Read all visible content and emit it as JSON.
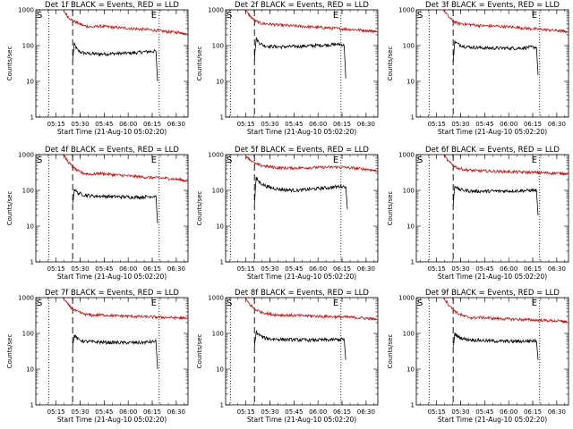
{
  "colors": {
    "events": "#000000",
    "lld": "#dd0000",
    "axis": "#000000",
    "background": "#ffffff"
  },
  "chart_data": [
    {
      "type": "line",
      "title": "Det 1f BLACK = Events, RED = LLD",
      "xlabel": "Start Time (21-Aug-10 05:02:20)",
      "ylabel": "Counts/sec",
      "yscale": "log",
      "ylim": [
        1,
        1000
      ],
      "ytick_labels": [
        "1",
        "10",
        "100",
        "1000"
      ],
      "x_unit": "minutes after 05:02:20",
      "xlim": [
        0,
        95
      ],
      "xtick_labels": [
        "05:15",
        "05:30",
        "05:45",
        "06:00",
        "06:15",
        "06:30"
      ],
      "start_marker": "S",
      "end_marker": "E",
      "dotted_lines": [
        8,
        77
      ],
      "dashed_line": 23,
      "series": [
        {
          "name": "Events",
          "x": [
            23,
            24,
            26,
            28,
            32,
            40,
            50,
            60,
            70,
            75,
            76
          ],
          "y": [
            40,
            110,
            75,
            65,
            60,
            58,
            60,
            62,
            68,
            70,
            10
          ]
        },
        {
          "name": "LLD",
          "x": [
            17,
            20,
            23,
            26,
            30,
            35,
            40,
            50,
            60,
            70,
            80,
            90,
            95
          ],
          "y": [
            1000,
            650,
            500,
            430,
            360,
            330,
            350,
            320,
            300,
            280,
            250,
            230,
            210
          ]
        }
      ]
    },
    {
      "type": "line",
      "title": "Det 2f BLACK = Events, RED = LLD",
      "xlabel": "Start Time (21-Aug-10 05:02:20)",
      "ylabel": "Counts/sec",
      "yscale": "log",
      "ylim": [
        1,
        1000
      ],
      "ytick_labels": [
        "1",
        "10",
        "100",
        "1000"
      ],
      "x_unit": "minutes after 05:02:20",
      "xlim": [
        0,
        95
      ],
      "xtick_labels": [
        "05:15",
        "05:30",
        "05:45",
        "06:00",
        "06:15",
        "06:30"
      ],
      "start_marker": "S",
      "end_marker": "E",
      "dotted_lines": [
        3,
        72
      ],
      "dashed_line": 18,
      "series": [
        {
          "name": "Events",
          "x": [
            18,
            19,
            21,
            24,
            28,
            35,
            45,
            55,
            65,
            72,
            74,
            75
          ],
          "y": [
            40,
            160,
            120,
            100,
            95,
            92,
            95,
            100,
            105,
            110,
            100,
            12
          ]
        },
        {
          "name": "LLD",
          "x": [
            12,
            15,
            18,
            22,
            27,
            32,
            40,
            50,
            60,
            70,
            80,
            90,
            95
          ],
          "y": [
            1000,
            700,
            500,
            420,
            400,
            380,
            360,
            340,
            320,
            300,
            280,
            260,
            240
          ]
        }
      ]
    },
    {
      "type": "line",
      "title": "Det 3f BLACK = Events, RED = LLD",
      "xlabel": "Start Time (21-Aug-10 05:02:20)",
      "ylabel": "Counts/sec",
      "yscale": "log",
      "ylim": [
        1,
        1000
      ],
      "ytick_labels": [
        "1",
        "10",
        "100",
        "1000"
      ],
      "x_unit": "minutes after 05:02:20",
      "xlim": [
        0,
        95
      ],
      "xtick_labels": [
        "05:15",
        "05:30",
        "05:45",
        "06:00",
        "06:15",
        "06:30"
      ],
      "start_marker": "S",
      "end_marker": "E",
      "dotted_lines": [
        8,
        77
      ],
      "dashed_line": 23,
      "series": [
        {
          "name": "Events",
          "x": [
            23,
            24,
            26,
            30,
            35,
            45,
            55,
            65,
            72,
            75,
            76
          ],
          "y": [
            40,
            130,
            110,
            95,
            90,
            85,
            85,
            85,
            90,
            90,
            15
          ]
        },
        {
          "name": "LLD",
          "x": [
            17,
            20,
            23,
            26,
            30,
            35,
            40,
            50,
            60,
            70,
            80,
            90,
            95
          ],
          "y": [
            1000,
            650,
            480,
            420,
            400,
            380,
            360,
            350,
            330,
            300,
            280,
            260,
            240
          ]
        }
      ]
    },
    {
      "type": "line",
      "title": "Det 4f BLACK = Events, RED = LLD",
      "xlabel": "Start Time (21-Aug-10 05:02:20)",
      "ylabel": "Counts/sec",
      "yscale": "log",
      "ylim": [
        1,
        1000
      ],
      "ytick_labels": [
        "1",
        "10",
        "100",
        "1000"
      ],
      "x_unit": "minutes after 05:02:20",
      "xlim": [
        0,
        95
      ],
      "xtick_labels": [
        "05:15",
        "05:30",
        "05:45",
        "06:00",
        "06:15",
        "06:30"
      ],
      "start_marker": "S",
      "end_marker": "E",
      "dotted_lines": [
        8,
        77
      ],
      "dashed_line": 23,
      "series": [
        {
          "name": "Events",
          "x": [
            23,
            24,
            26,
            30,
            35,
            45,
            55,
            65,
            72,
            75,
            76
          ],
          "y": [
            40,
            110,
            85,
            75,
            70,
            68,
            66,
            65,
            68,
            70,
            12
          ]
        },
        {
          "name": "LLD",
          "x": [
            17,
            20,
            23,
            26,
            30,
            35,
            40,
            50,
            60,
            70,
            80,
            90,
            95
          ],
          "y": [
            1000,
            650,
            450,
            350,
            300,
            280,
            300,
            270,
            250,
            230,
            220,
            200,
            180
          ]
        }
      ]
    },
    {
      "type": "line",
      "title": "Det 5f BLACK = Events, RED = LLD",
      "xlabel": "Start Time (21-Aug-10 05:02:20)",
      "ylabel": "Counts/sec",
      "yscale": "log",
      "ylim": [
        1,
        1000
      ],
      "ytick_labels": [
        "1",
        "10",
        "100",
        "1000"
      ],
      "x_unit": "minutes after 05:02:20",
      "xlim": [
        0,
        95
      ],
      "xtick_labels": [
        "05:15",
        "05:30",
        "05:45",
        "06:00",
        "06:15",
        "06:30"
      ],
      "start_marker": "S",
      "end_marker": "E",
      "dotted_lines": [
        3,
        72
      ],
      "dashed_line": 18,
      "series": [
        {
          "name": "Events",
          "x": [
            18,
            19,
            21,
            24,
            28,
            35,
            45,
            55,
            65,
            72,
            75,
            76
          ],
          "y": [
            40,
            220,
            170,
            140,
            120,
            105,
            100,
            110,
            120,
            130,
            130,
            30
          ]
        },
        {
          "name": "LLD",
          "x": [
            12,
            15,
            18,
            22,
            27,
            32,
            40,
            50,
            60,
            70,
            80,
            90,
            95
          ],
          "y": [
            1000,
            750,
            560,
            500,
            460,
            430,
            420,
            430,
            440,
            450,
            420,
            380,
            340
          ]
        }
      ]
    },
    {
      "type": "line",
      "title": "Det 6f BLACK = Events, RED = LLD",
      "xlabel": "Start Time (21-Aug-10 05:02:20)",
      "ylabel": "Counts/sec",
      "yscale": "log",
      "ylim": [
        1,
        1000
      ],
      "ytick_labels": [
        "1",
        "10",
        "100",
        "1000"
      ],
      "x_unit": "minutes after 05:02:20",
      "xlim": [
        0,
        95
      ],
      "xtick_labels": [
        "05:15",
        "05:30",
        "05:45",
        "06:00",
        "06:15",
        "06:30"
      ],
      "start_marker": "S",
      "end_marker": "E",
      "dotted_lines": [
        8,
        77
      ],
      "dashed_line": 23,
      "series": [
        {
          "name": "Events",
          "x": [
            23,
            24,
            26,
            30,
            35,
            45,
            55,
            65,
            72,
            75,
            76
          ],
          "y": [
            40,
            140,
            110,
            100,
            95,
            95,
            96,
            98,
            100,
            100,
            20
          ]
        },
        {
          "name": "LLD",
          "x": [
            17,
            20,
            23,
            26,
            30,
            35,
            40,
            50,
            60,
            70,
            80,
            90,
            95
          ],
          "y": [
            1000,
            650,
            500,
            420,
            380,
            360,
            350,
            340,
            330,
            320,
            310,
            300,
            290
          ]
        }
      ]
    },
    {
      "type": "line",
      "title": "Det 7f BLACK = Events, RED = LLD",
      "xlabel": "Start Time (21-Aug-10 05:02:20)",
      "ylabel": "Counts/sec",
      "yscale": "log",
      "ylim": [
        1,
        1000
      ],
      "ytick_labels": [
        "1",
        "10",
        "100",
        "1000"
      ],
      "x_unit": "minutes after 05:02:20",
      "xlim": [
        0,
        95
      ],
      "xtick_labels": [
        "05:15",
        "05:30",
        "05:45",
        "06:00",
        "06:15",
        "06:30"
      ],
      "start_marker": "S",
      "end_marker": "E",
      "dotted_lines": [
        8,
        77
      ],
      "dashed_line": 23,
      "series": [
        {
          "name": "Events",
          "x": [
            23,
            24,
            26,
            30,
            35,
            45,
            55,
            65,
            72,
            75,
            76
          ],
          "y": [
            40,
            90,
            70,
            60,
            58,
            56,
            55,
            55,
            58,
            60,
            10
          ]
        },
        {
          "name": "LLD",
          "x": [
            17,
            20,
            23,
            26,
            30,
            35,
            40,
            50,
            60,
            70,
            80,
            90,
            95
          ],
          "y": [
            1000,
            650,
            480,
            400,
            350,
            320,
            330,
            310,
            300,
            290,
            280,
            270,
            260
          ]
        }
      ]
    },
    {
      "type": "line",
      "title": "Det 8f BLACK = Events, RED = LLD",
      "xlabel": "Start Time (21-Aug-10 05:02:20)",
      "ylabel": "Counts/sec",
      "yscale": "log",
      "ylim": [
        1,
        1000
      ],
      "ytick_labels": [
        "1",
        "10",
        "100",
        "1000"
      ],
      "x_unit": "minutes after 05:02:20",
      "xlim": [
        0,
        95
      ],
      "xtick_labels": [
        "05:15",
        "05:30",
        "05:45",
        "06:00",
        "06:15",
        "06:30"
      ],
      "start_marker": "S",
      "end_marker": "E",
      "dotted_lines": [
        3,
        72
      ],
      "dashed_line": 18,
      "series": [
        {
          "name": "Events",
          "x": [
            18,
            19,
            21,
            24,
            28,
            35,
            45,
            55,
            65,
            72,
            74,
            75
          ],
          "y": [
            40,
            110,
            90,
            75,
            70,
            68,
            66,
            65,
            66,
            68,
            70,
            18
          ]
        },
        {
          "name": "LLD",
          "x": [
            12,
            15,
            18,
            22,
            27,
            32,
            40,
            50,
            60,
            70,
            80,
            90,
            95
          ],
          "y": [
            1000,
            650,
            480,
            400,
            350,
            330,
            320,
            310,
            300,
            290,
            280,
            260,
            240
          ]
        }
      ]
    },
    {
      "type": "line",
      "title": "Det 9f BLACK = Events, RED = LLD",
      "xlabel": "Start Time (21-Aug-10 05:02:20)",
      "ylabel": "Counts/sec",
      "yscale": "log",
      "ylim": [
        1,
        1000
      ],
      "ytick_labels": [
        "1",
        "10",
        "100",
        "1000"
      ],
      "x_unit": "minutes after 05:02:20",
      "xlim": [
        0,
        95
      ],
      "xtick_labels": [
        "05:15",
        "05:30",
        "05:45",
        "06:00",
        "06:15",
        "06:30"
      ],
      "start_marker": "S",
      "end_marker": "E",
      "dotted_lines": [
        8,
        77
      ],
      "dashed_line": 23,
      "series": [
        {
          "name": "Events",
          "x": [
            23,
            24,
            26,
            30,
            35,
            45,
            55,
            65,
            72,
            75,
            76
          ],
          "y": [
            40,
            100,
            80,
            70,
            66,
            62,
            60,
            60,
            62,
            62,
            18
          ]
        },
        {
          "name": "LLD",
          "x": [
            17,
            20,
            23,
            26,
            30,
            35,
            40,
            50,
            60,
            70,
            80,
            90,
            95
          ],
          "y": [
            1000,
            650,
            460,
            360,
            300,
            270,
            280,
            260,
            250,
            240,
            230,
            220,
            200
          ]
        }
      ]
    }
  ]
}
